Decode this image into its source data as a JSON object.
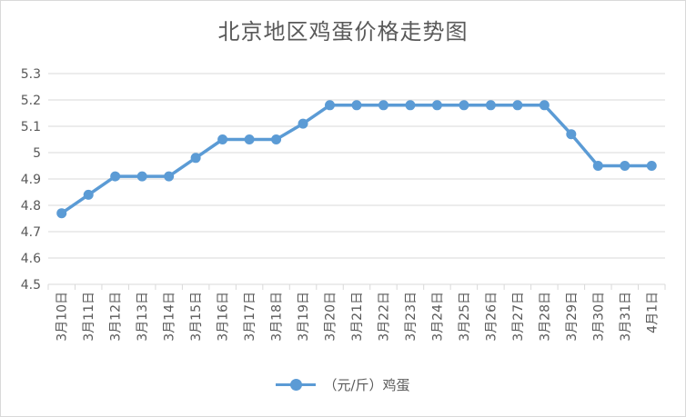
{
  "chart_data": {
    "type": "line",
    "title": "北京地区鸡蛋价格走势图",
    "categories": [
      "3月10日",
      "3月11日",
      "3月12日",
      "3月13日",
      "3月14日",
      "3月15日",
      "3月16日",
      "3月17日",
      "3月18日",
      "3月19日",
      "3月20日",
      "3月21日",
      "3月22日",
      "3月23日",
      "3月24日",
      "3月25日",
      "3月26日",
      "3月27日",
      "3月28日",
      "3月29日",
      "3月30日",
      "3月31日",
      "4月1日"
    ],
    "series": [
      {
        "name": "（元/斤）鸡蛋",
        "color": "#5b9bd5",
        "values": [
          4.77,
          4.84,
          4.91,
          4.91,
          4.91,
          4.98,
          5.05,
          5.05,
          5.05,
          5.11,
          5.18,
          5.18,
          5.18,
          5.18,
          5.18,
          5.18,
          5.18,
          5.18,
          5.18,
          5.07,
          4.95,
          4.95,
          4.95
        ]
      }
    ],
    "ylim": [
      4.5,
      5.3
    ],
    "yticks": [
      "4.5",
      "4.6",
      "4.7",
      "4.8",
      "4.9",
      "5",
      "5.1",
      "5.2",
      "5.3"
    ],
    "grid": true,
    "legend_position": "bottom"
  }
}
